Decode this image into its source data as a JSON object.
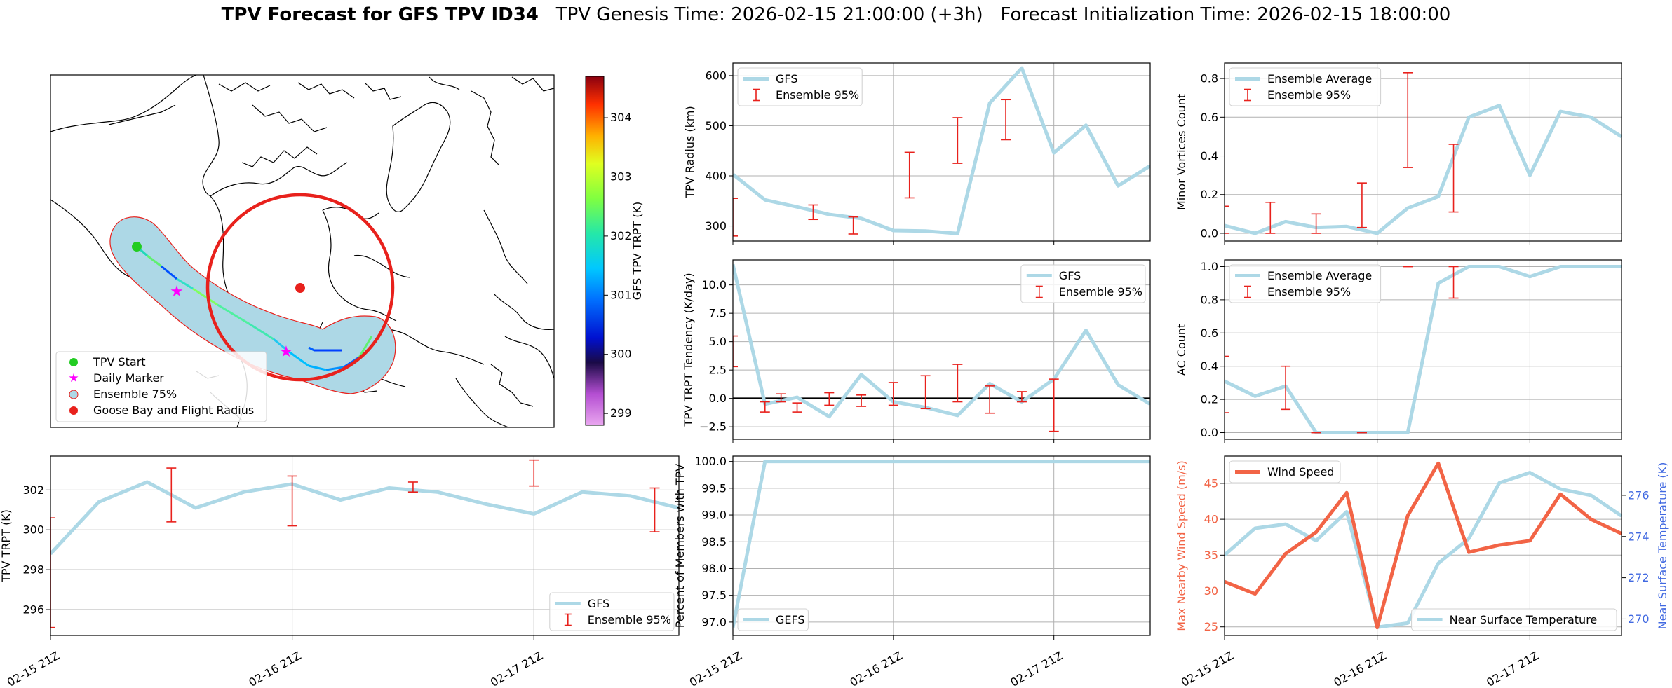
{
  "figure": {
    "title_bold": "TPV Forecast for GFS TPV ID34",
    "title_genesis": "TPV Genesis Time: 2026-02-15 21:00:00 (+3h)",
    "title_init": "Forecast Initialization Time: 2026-02-15 18:00:00"
  },
  "colors": {
    "gfs_line": "#add8e6",
    "errorbar": "#e8211c",
    "wind": "#f26446",
    "temp_axis": "#4169e1",
    "goose_circle": "#e8211c"
  },
  "map": {
    "colorbar_label": "GFS TPV TRPT (K)",
    "colorbar_ticks": [
      "299",
      "300",
      "301",
      "302",
      "303",
      "304"
    ],
    "colorbar_range": [
      298.8,
      304.7
    ],
    "legend": [
      {
        "label": "TPV Start",
        "icon": "green-circle-icon"
      },
      {
        "label": "Daily Marker",
        "icon": "magenta-star-icon"
      },
      {
        "label": "Ensemble 75%",
        "icon": "lightblue-patch-icon"
      },
      {
        "label": "Goose Bay and Flight Radius",
        "icon": "red-circle-icon"
      }
    ]
  },
  "x_tick_labels": [
    "02-15 21Z",
    "02-16 21Z",
    "02-17 21Z"
  ],
  "chart_data": [
    {
      "id": "trpt",
      "type": "line",
      "ylabel": "TPV TRPT (K)",
      "xlim": [
        0,
        13
      ],
      "ylim": [
        294.7,
        303.7
      ],
      "yticks": [
        296,
        298,
        300,
        302
      ],
      "x": [
        0,
        1,
        2,
        3,
        4,
        5,
        6,
        7,
        8,
        9,
        10,
        11,
        12,
        13
      ],
      "series": [
        {
          "name": "GFS",
          "values": [
            298.8,
            301.4,
            302.4,
            301.1,
            301.9,
            302.3,
            301.5,
            302.1,
            301.9,
            301.3,
            300.8,
            301.9,
            301.7,
            301.1
          ]
        }
      ],
      "errorbars": [
        {
          "x": 0,
          "low": 295.1,
          "high": 300.6
        },
        {
          "x": 2.5,
          "low": 300.4,
          "high": 303.1
        },
        {
          "x": 5,
          "low": 300.2,
          "high": 302.7
        },
        {
          "x": 7.5,
          "low": 301.9,
          "high": 302.4
        },
        {
          "x": 10,
          "low": 302.2,
          "high": 303.5
        },
        {
          "x": 12.5,
          "low": 299.9,
          "high": 302.1
        }
      ],
      "legend": [
        {
          "label": "GFS",
          "kind": "line"
        },
        {
          "label": "Ensemble 95%",
          "kind": "errorbar"
        }
      ],
      "legend_pos": "lower-right",
      "show_xticklabels": true
    },
    {
      "id": "radius",
      "type": "line",
      "ylabel": "TPV Radius (km)",
      "xlim": [
        0,
        13
      ],
      "ylim": [
        270,
        625
      ],
      "yticks": [
        300,
        400,
        500,
        600
      ],
      "x": [
        0,
        1,
        2,
        3,
        4,
        5,
        6,
        7,
        8,
        9,
        10,
        11,
        12,
        13
      ],
      "series": [
        {
          "name": "GFS",
          "values": [
            403,
            352,
            338,
            323,
            315,
            291,
            290,
            285,
            545,
            615,
            446,
            501,
            380,
            420
          ]
        }
      ],
      "errorbars": [
        {
          "x": 0,
          "low": 280,
          "high": 355
        },
        {
          "x": 2.5,
          "low": 313,
          "high": 342
        },
        {
          "x": 3.75,
          "low": 284,
          "high": 318
        },
        {
          "x": 5.5,
          "low": 356,
          "high": 447
        },
        {
          "x": 7,
          "low": 425,
          "high": 516
        },
        {
          "x": 8.5,
          "low": 472,
          "high": 552
        }
      ],
      "legend": [
        {
          "label": "GFS",
          "kind": "line"
        },
        {
          "label": "Ensemble 95%",
          "kind": "errorbar"
        }
      ],
      "legend_pos": "upper-left",
      "show_xticklabels": false
    },
    {
      "id": "tendency",
      "type": "line",
      "ylabel": "TPV TRPT Tendency (K/day)",
      "xlim": [
        0,
        13
      ],
      "ylim": [
        -3.6,
        12.2
      ],
      "yticks": [
        -2.5,
        0.0,
        2.5,
        5.0,
        7.5,
        10.0
      ],
      "ytick_labels": [
        "−2.5",
        "0.0",
        "2.5",
        "5.0",
        "7.5",
        "10.0"
      ],
      "zero_line": true,
      "x": [
        0,
        1,
        2,
        3,
        4,
        5,
        6,
        7,
        8,
        9,
        10,
        11,
        12,
        13
      ],
      "series": [
        {
          "name": "GFS",
          "values": [
            11.8,
            -0.5,
            0.1,
            -1.6,
            2.1,
            -0.3,
            -0.8,
            -1.5,
            1.3,
            -0.3,
            1.7,
            6.0,
            1.2,
            -0.5
          ]
        }
      ],
      "errorbars": [
        {
          "x": 0,
          "low": 2.8,
          "high": 5.5
        },
        {
          "x": 1,
          "low": -1.2,
          "high": -0.3
        },
        {
          "x": 1.5,
          "low": -0.3,
          "high": 0.4
        },
        {
          "x": 2,
          "low": -1.2,
          "high": -0.4
        },
        {
          "x": 3,
          "low": -0.6,
          "high": 0.5
        },
        {
          "x": 4,
          "low": -0.7,
          "high": 0.3
        },
        {
          "x": 5,
          "low": -0.6,
          "high": 1.4
        },
        {
          "x": 6,
          "low": -0.9,
          "high": 2.0
        },
        {
          "x": 7,
          "low": -0.3,
          "high": 3.0
        },
        {
          "x": 8,
          "low": -1.3,
          "high": 1.1
        },
        {
          "x": 9,
          "low": -0.3,
          "high": 0.6
        },
        {
          "x": 10,
          "low": -2.9,
          "high": 1.7
        }
      ],
      "legend": [
        {
          "label": "GFS",
          "kind": "line"
        },
        {
          "label": "Ensemble 95%",
          "kind": "errorbar"
        }
      ],
      "legend_pos": "upper-right",
      "show_xticklabels": false
    },
    {
      "id": "members",
      "type": "line",
      "ylabel": "Percent of Members with TPV",
      "xlim": [
        0,
        13
      ],
      "ylim": [
        96.75,
        100.1
      ],
      "yticks": [
        97.0,
        97.5,
        98.0,
        98.5,
        99.0,
        99.5,
        100.0
      ],
      "ytick_labels": [
        "97.0",
        "97.5",
        "98.0",
        "98.5",
        "99.0",
        "99.5",
        "100.0"
      ],
      "x": [
        0,
        1,
        2,
        3,
        4,
        5,
        6,
        7,
        8,
        9,
        10,
        11,
        12,
        13
      ],
      "series": [
        {
          "name": "GEFS",
          "values": [
            96.9,
            100,
            100,
            100,
            100,
            100,
            100,
            100,
            100,
            100,
            100,
            100,
            100,
            100
          ]
        }
      ],
      "legend": [
        {
          "label": "GEFS",
          "kind": "line"
        }
      ],
      "legend_pos": "lower-left",
      "show_xticklabels": true
    },
    {
      "id": "minor",
      "type": "line",
      "ylabel": "Minor Vortices Count",
      "xlim": [
        0,
        13
      ],
      "ylim": [
        -0.04,
        0.88
      ],
      "yticks": [
        0.0,
        0.2,
        0.4,
        0.6,
        0.8
      ],
      "ytick_labels": [
        "0.0",
        "0.2",
        "0.4",
        "0.6",
        "0.8"
      ],
      "x": [
        0,
        1,
        2,
        3,
        4,
        5,
        6,
        7,
        8,
        9,
        10,
        11,
        12,
        13
      ],
      "series": [
        {
          "name": "Ensemble Average",
          "values": [
            0.04,
            0.0,
            0.06,
            0.03,
            0.035,
            0.0,
            0.13,
            0.19,
            0.6,
            0.66,
            0.3,
            0.63,
            0.6,
            0.5
          ]
        }
      ],
      "errorbars": [
        {
          "x": 0,
          "low": 0.0,
          "high": 0.14
        },
        {
          "x": 1.5,
          "low": 0.0,
          "high": 0.16
        },
        {
          "x": 3,
          "low": 0.0,
          "high": 0.1
        },
        {
          "x": 4.5,
          "low": 0.03,
          "high": 0.26
        },
        {
          "x": 6,
          "low": 0.34,
          "high": 0.83
        },
        {
          "x": 7.5,
          "low": 0.11,
          "high": 0.46
        }
      ],
      "legend": [
        {
          "label": "Ensemble Average",
          "kind": "line"
        },
        {
          "label": "Ensemble 95%",
          "kind": "errorbar"
        }
      ],
      "legend_pos": "upper-left",
      "show_xticklabels": false
    },
    {
      "id": "ac",
      "type": "line",
      "ylabel": "AC Count",
      "xlim": [
        0,
        13
      ],
      "ylim": [
        -0.04,
        1.04
      ],
      "yticks": [
        0.0,
        0.2,
        0.4,
        0.6,
        0.8,
        1.0
      ],
      "ytick_labels": [
        "0.0",
        "0.2",
        "0.4",
        "0.6",
        "0.8",
        "1.0"
      ],
      "x": [
        0,
        1,
        2,
        3,
        4,
        5,
        6,
        7,
        8,
        9,
        10,
        11,
        12,
        13
      ],
      "series": [
        {
          "name": "Ensemble Average",
          "values": [
            0.31,
            0.22,
            0.28,
            0.0,
            0.0,
            0.0,
            0.0,
            0.9,
            1.0,
            1.0,
            0.94,
            1.0,
            1.0,
            1.0
          ]
        }
      ],
      "errorbars": [
        {
          "x": 0,
          "low": 0.12,
          "high": 0.46
        },
        {
          "x": 2,
          "low": 0.14,
          "high": 0.4
        },
        {
          "x": 3,
          "low": 0.0,
          "high": 0.0
        },
        {
          "x": 4.5,
          "low": 0.0,
          "high": 0.0
        },
        {
          "x": 6,
          "low": 1.0,
          "high": 1.0
        },
        {
          "x": 7.5,
          "low": 0.81,
          "high": 1.0
        }
      ],
      "legend": [
        {
          "label": "Ensemble Average",
          "kind": "line"
        },
        {
          "label": "Ensemble 95%",
          "kind": "errorbar"
        }
      ],
      "legend_pos": "upper-left",
      "show_xticklabels": false
    },
    {
      "id": "wind_temp",
      "type": "line",
      "ylabel": "Max Nearby Wind Speed (m/s)",
      "ylabel_right": "Near Surface Temperature (K)",
      "xlim": [
        0,
        13
      ],
      "ylim": [
        23.8,
        48.8
      ],
      "yticks": [
        25,
        30,
        35,
        40,
        45
      ],
      "ylim_right": [
        269.2,
        277.9
      ],
      "yticks_right": [
        270,
        272,
        274,
        276
      ],
      "x": [
        0,
        1,
        2,
        3,
        4,
        5,
        6,
        7,
        8,
        9,
        10,
        11,
        12,
        13
      ],
      "series": [
        {
          "name": "Wind Speed",
          "axis": "left",
          "values": [
            31.3,
            29.6,
            35.2,
            38.2,
            43.7,
            24.9,
            40.5,
            47.8,
            35.4,
            36.4,
            37.0,
            43.5,
            40.0,
            38.0
          ]
        },
        {
          "name": "Near Surface Temperature",
          "axis": "right",
          "values": [
            273.1,
            274.4,
            274.6,
            273.8,
            275.2,
            269.6,
            269.8,
            272.7,
            273.9,
            276.6,
            277.1,
            276.3,
            276.0,
            275.0
          ]
        }
      ],
      "legend": [
        {
          "label": "Wind Speed",
          "kind": "line"
        }
      ],
      "legend2": [
        {
          "label": "Near Surface Temperature",
          "kind": "line"
        }
      ],
      "show_xticklabels": true
    }
  ]
}
